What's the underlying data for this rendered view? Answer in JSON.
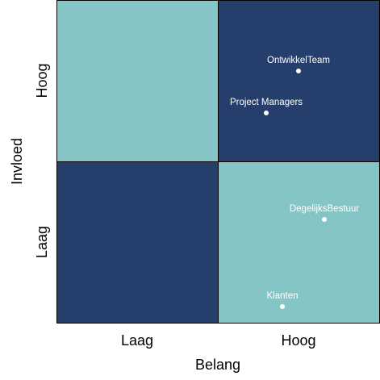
{
  "chart": {
    "x_axis_label": "Belang",
    "y_axis_label": "Invloed",
    "x_categories": [
      "Laag",
      "Hoog"
    ],
    "y_categories": [
      "Laag",
      "Hoog"
    ],
    "colors": {
      "light": "#86c5c5",
      "dark": "#253e6b",
      "point": "#ffffff",
      "point_label": "#ffffff",
      "border": "#000000"
    },
    "quadrants": [
      {
        "x": "Laag",
        "y": "Hoog",
        "shade": "light"
      },
      {
        "x": "Hoog",
        "y": "Hoog",
        "shade": "dark"
      },
      {
        "x": "Laag",
        "y": "Laag",
        "shade": "dark"
      },
      {
        "x": "Hoog",
        "y": "Laag",
        "shade": "light"
      }
    ]
  },
  "chart_data": {
    "type": "scatter",
    "xlabel": "Belang",
    "ylabel": "Invloed",
    "xlim": [
      0,
      1
    ],
    "ylim": [
      0,
      1
    ],
    "x_tick_labels": [
      "Laag",
      "Hoog"
    ],
    "y_tick_labels": [
      "Laag",
      "Hoog"
    ],
    "grid": false,
    "points": [
      {
        "label": "OntwikkelTeam",
        "x": 0.75,
        "y": 0.78
      },
      {
        "label": "Project Managers",
        "x": 0.65,
        "y": 0.65
      },
      {
        "label": "DegelijksBestuur",
        "x": 0.83,
        "y": 0.32
      },
      {
        "label": "Klanten",
        "x": 0.7,
        "y": 0.05
      }
    ]
  }
}
